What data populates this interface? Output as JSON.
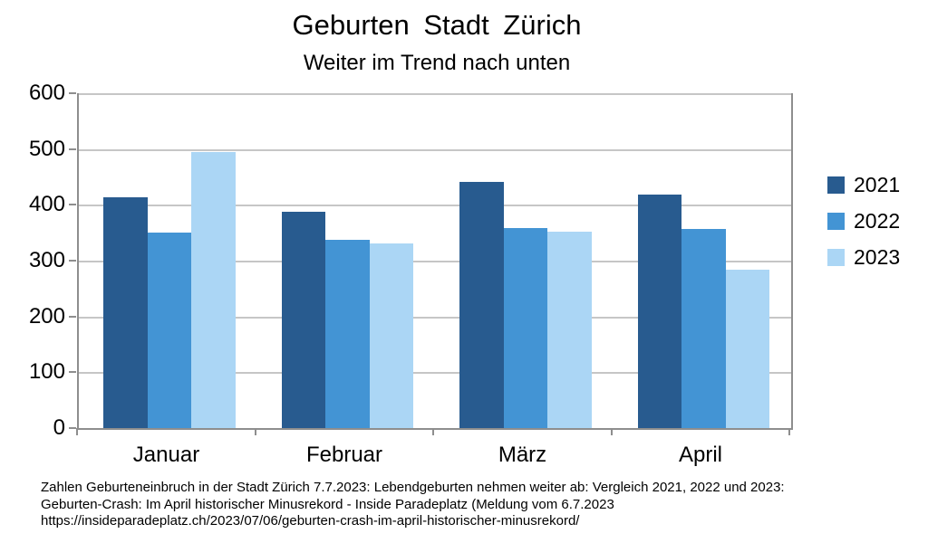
{
  "title": "Geburten Stadt Zürich",
  "subtitle": "Weiter im Trend nach unten",
  "colors": {
    "series_2021": "#285B8F",
    "series_2022": "#4394D4",
    "series_2023": "#ABD6F5",
    "grid": "#C6C6C6",
    "axis": "#8E8E8E",
    "text": "#000000"
  },
  "chart_data": {
    "type": "bar",
    "title": "Geburten Stadt Zürich",
    "subtitle": "Weiter im Trend nach unten",
    "categories": [
      "Januar",
      "Februar",
      "März",
      "April"
    ],
    "series": [
      {
        "name": "2021",
        "color": "#285B8F",
        "values": [
          413,
          387,
          441,
          418
        ]
      },
      {
        "name": "2022",
        "color": "#4394D4",
        "values": [
          350,
          337,
          358,
          357
        ]
      },
      {
        "name": "2023",
        "color": "#ABD6F5",
        "values": [
          495,
          331,
          352,
          284
        ]
      }
    ],
    "xlabel": "",
    "ylabel": "",
    "ylim": [
      0,
      600
    ],
    "ytick_step": 100,
    "grid": true,
    "legend_position": "right"
  },
  "footer": {
    "lines": [
      "Zahlen Geburteneinbruch in der Stadt Zürich 7.7.2023: Lebendgeburten nehmen weiter ab: Vergleich 2021, 2022 und 2023:",
      "Geburten-Crash: Im April historischer Minusrekord - Inside Paradeplatz (Meldung vom 6.7.2023",
      "https://insideparadeplatz.ch/2023/07/06/geburten-crash-im-april-historischer-minusrekord/"
    ]
  }
}
